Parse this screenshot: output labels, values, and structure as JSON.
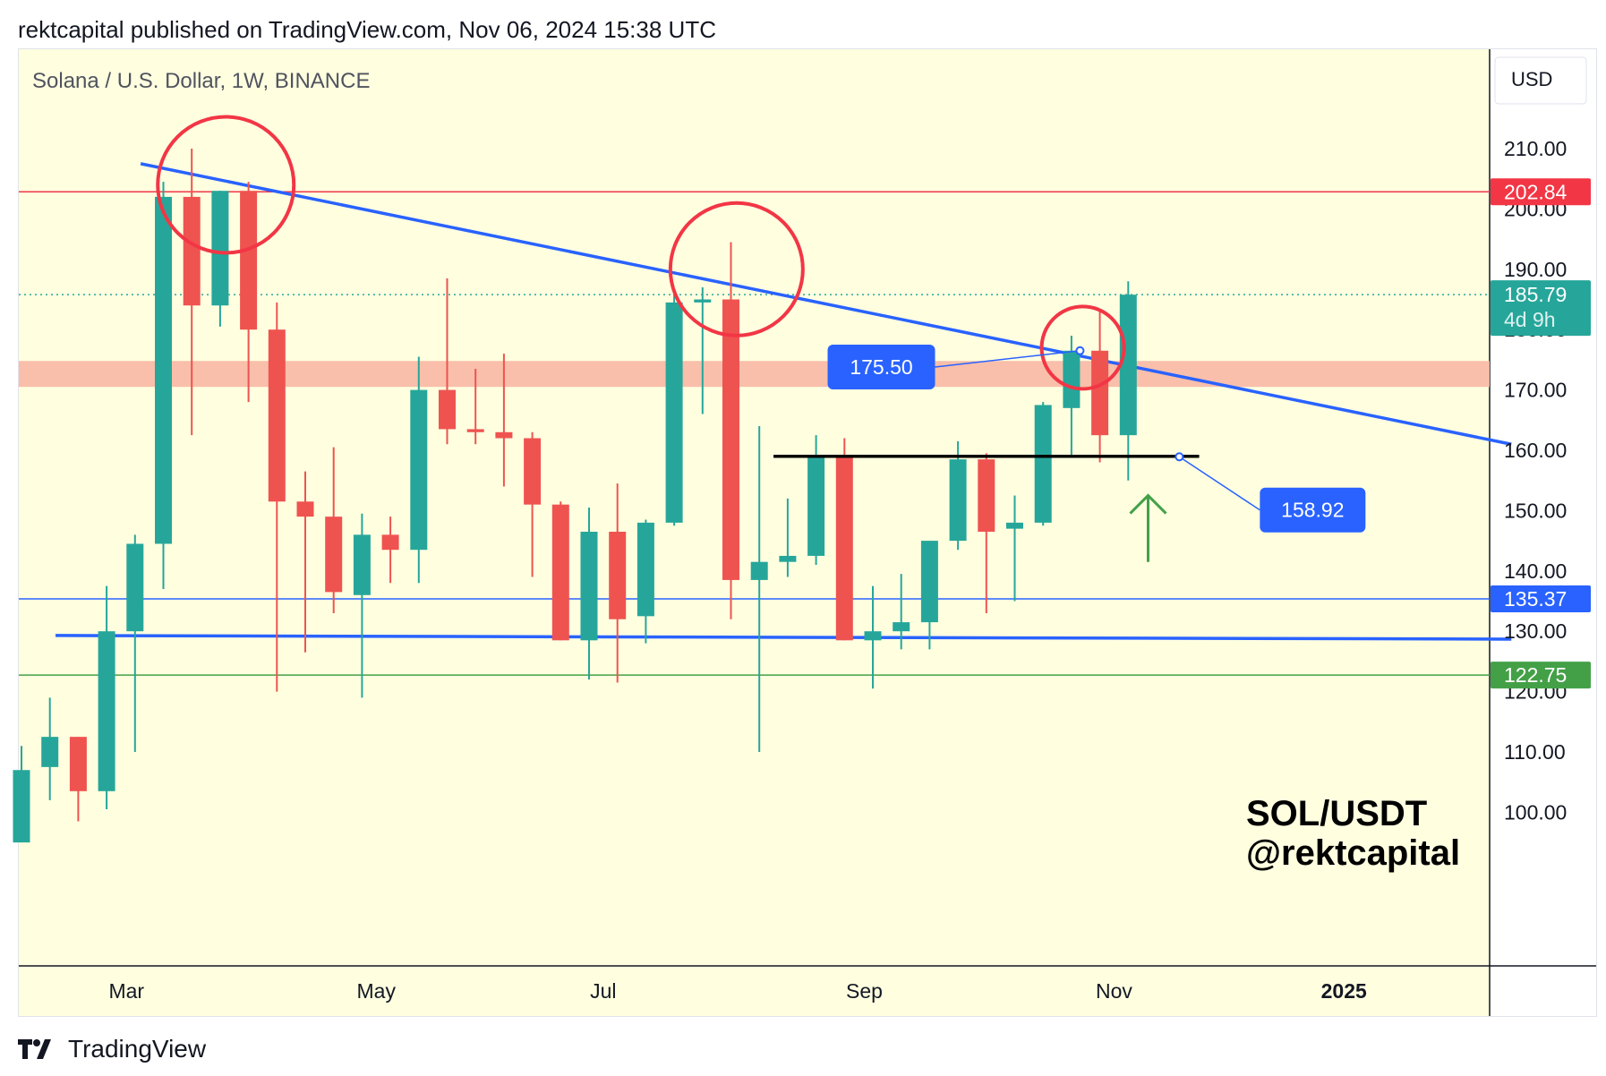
{
  "header": {
    "publish_line": "rektcapital published on TradingView.com, Nov 06, 2024 15:38 UTC"
  },
  "footer": {
    "brand": "TradingView"
  },
  "colors": {
    "background": "#ffffe0",
    "up": "#26a69a",
    "down": "#ef5350",
    "trendline": "#2962ff",
    "red_level": "#f23645",
    "green_level": "#43a047",
    "resistance_zone": "#f8b8a4",
    "circle": "#f23645"
  },
  "chart_data": {
    "type": "candlestick",
    "title": "Solana / U.S. Dollar, 1W, BINANCE",
    "currency_button": "USD",
    "watermark": [
      "SOL/USDT",
      "@rektcapital"
    ],
    "ylim": [
      95,
      222
    ],
    "y_ticks": [
      "210.00",
      "200.00",
      "190.00",
      "180.00",
      "170.00",
      "160.00",
      "150.00",
      "140.00",
      "130.00",
      "120.00",
      "110.00",
      "100.00"
    ],
    "x_ticks": [
      "Mar",
      "May",
      "Jul",
      "Sep",
      "Nov",
      "2025"
    ],
    "x_tick_bold": [
      false,
      false,
      false,
      false,
      false,
      true
    ],
    "x_tick_index": [
      3.7,
      12.5,
      20.5,
      29.7,
      38.5,
      46.6
    ],
    "candles": [
      {
        "o": 95,
        "h": 111,
        "l": 95,
        "c": 107
      },
      {
        "o": 107.5,
        "h": 119,
        "l": 102,
        "c": 112.5
      },
      {
        "o": 112.5,
        "h": 112.5,
        "l": 98.5,
        "c": 103.5
      },
      {
        "o": 103.5,
        "h": 137.5,
        "l": 100.5,
        "c": 130
      },
      {
        "o": 130,
        "h": 146,
        "l": 110,
        "c": 144.5
      },
      {
        "o": 144.5,
        "h": 204.5,
        "l": 137,
        "c": 202
      },
      {
        "o": 202,
        "h": 210,
        "l": 162.5,
        "c": 184
      },
      {
        "o": 184,
        "h": 203,
        "l": 180.5,
        "c": 203
      },
      {
        "o": 203,
        "h": 204.5,
        "l": 168,
        "c": 180
      },
      {
        "o": 180,
        "h": 184.5,
        "l": 120,
        "c": 151.5
      },
      {
        "o": 151.5,
        "h": 156.5,
        "l": 126.5,
        "c": 149
      },
      {
        "o": 149,
        "h": 160.5,
        "l": 133,
        "c": 136.5
      },
      {
        "o": 136,
        "h": 149.5,
        "l": 119,
        "c": 146
      },
      {
        "o": 146,
        "h": 149,
        "l": 138,
        "c": 143.5
      },
      {
        "o": 143.5,
        "h": 175.5,
        "l": 138,
        "c": 170
      },
      {
        "o": 170,
        "h": 188.5,
        "l": 161,
        "c": 163.5
      },
      {
        "o": 163.5,
        "h": 173.5,
        "l": 161,
        "c": 163
      },
      {
        "o": 163,
        "h": 176,
        "l": 154,
        "c": 162
      },
      {
        "o": 162,
        "h": 163,
        "l": 139,
        "c": 151
      },
      {
        "o": 151,
        "h": 151.5,
        "l": 128.5,
        "c": 128.5
      },
      {
        "o": 128.5,
        "h": 150.5,
        "l": 122,
        "c": 146.5
      },
      {
        "o": 146.5,
        "h": 154.5,
        "l": 121.5,
        "c": 132
      },
      {
        "o": 132.5,
        "h": 148.5,
        "l": 128,
        "c": 148
      },
      {
        "o": 148,
        "h": 186,
        "l": 147.5,
        "c": 184.5
      },
      {
        "o": 184.5,
        "h": 187,
        "l": 166,
        "c": 185
      },
      {
        "o": 185,
        "h": 194.5,
        "l": 132,
        "c": 138.5
      },
      {
        "o": 138.5,
        "h": 164,
        "l": 110,
        "c": 141.5
      },
      {
        "o": 141.5,
        "h": 152,
        "l": 139,
        "c": 142.5
      },
      {
        "o": 142.5,
        "h": 162.5,
        "l": 141,
        "c": 159
      },
      {
        "o": 159,
        "h": 162,
        "l": 128.5,
        "c": 128.5
      },
      {
        "o": 128.5,
        "h": 137.5,
        "l": 120.5,
        "c": 130
      },
      {
        "o": 130,
        "h": 139.5,
        "l": 127,
        "c": 131.5
      },
      {
        "o": 131.5,
        "h": 145,
        "l": 127,
        "c": 145
      },
      {
        "o": 145,
        "h": 161.5,
        "l": 143.5,
        "c": 158.5
      },
      {
        "o": 158.5,
        "h": 159.5,
        "l": 133,
        "c": 146.5
      },
      {
        "o": 147,
        "h": 152.5,
        "l": 135,
        "c": 148
      },
      {
        "o": 148,
        "h": 168,
        "l": 147.5,
        "c": 167.5
      },
      {
        "o": 167,
        "h": 179,
        "l": 159,
        "c": 176.5
      },
      {
        "o": 176.5,
        "h": 183,
        "l": 158,
        "c": 162.5
      },
      {
        "o": 162.5,
        "h": 188,
        "l": 155,
        "c": 185.79
      }
    ],
    "horizontal_levels": [
      {
        "value": 202.84,
        "label": "202.84",
        "color": "#f23645"
      },
      {
        "value": 135.37,
        "label": "135.37",
        "color": "#2962ff"
      },
      {
        "value": 122.75,
        "label": "122.75",
        "color": "#43a047"
      }
    ],
    "last_price": {
      "value": 185.79,
      "label": "185.79",
      "countdown": "4d 9h",
      "color": "#26a69a"
    },
    "resistance_zone": [
      170.5,
      174.8
    ],
    "descending_trendline": [
      {
        "i": 4.2,
        "v": 207.5
      },
      {
        "i": 52.5,
        "v": 161
      }
    ],
    "support_line": [
      {
        "i": 1.2,
        "v": 129.3
      },
      {
        "i": 52.5,
        "v": 128.7
      }
    ],
    "black_line": {
      "i0": 26.5,
      "i1": 41.5,
      "v": 159
    },
    "circles": [
      {
        "i": 7.2,
        "v": 204
      },
      {
        "i": 25.2,
        "v": 190
      },
      {
        "i": 37.4,
        "v": 177
      }
    ],
    "callouts": [
      {
        "label": "175.50",
        "box_i": 30.3,
        "box_v": 173.8,
        "anchor_i": 37.3,
        "anchor_v": 176.5
      },
      {
        "label": "158.92",
        "box_i": 45.5,
        "box_v": 150.1,
        "anchor_i": 40.8,
        "anchor_v": 158.92
      }
    ],
    "arrow": {
      "i": 39.7,
      "from_v": 141.5,
      "to_v": 152.5,
      "color": "#43a047"
    }
  }
}
